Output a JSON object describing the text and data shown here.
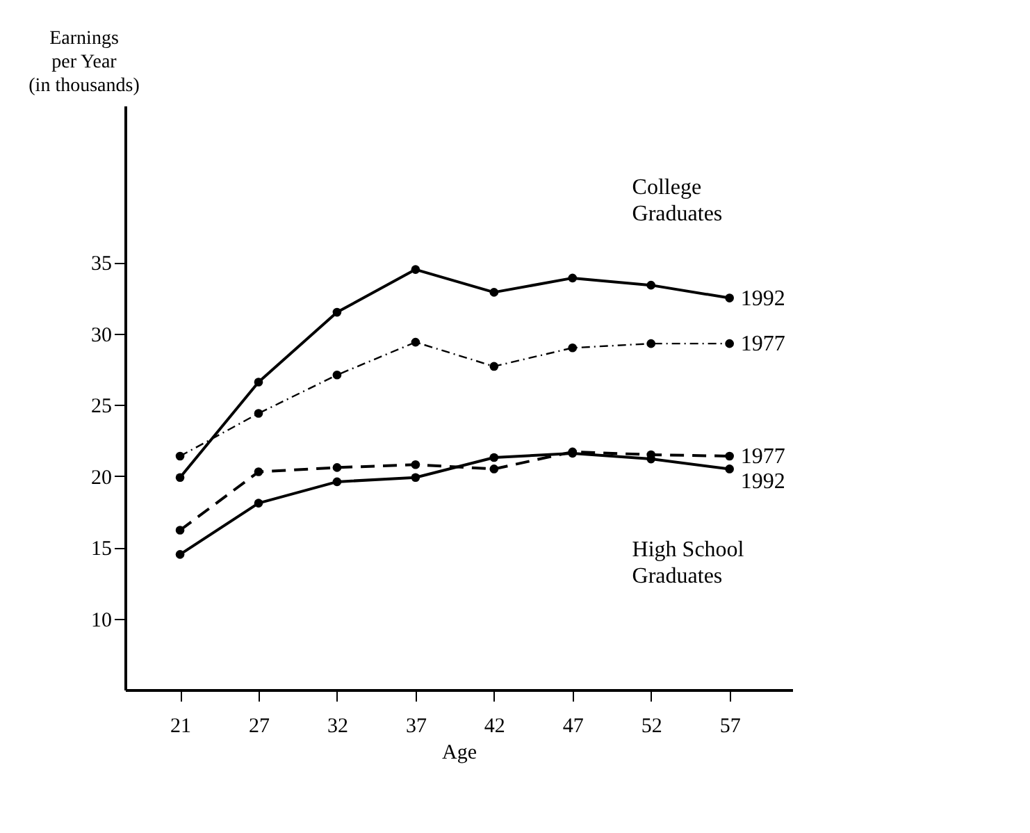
{
  "chart_data": {
    "type": "line",
    "xlabel": "Age",
    "ylabel": "Earnings per Year (in thousands)",
    "categories": [
      "21",
      "27",
      "32",
      "37",
      "42",
      "47",
      "52",
      "57"
    ],
    "ylim": [
      5,
      46
    ],
    "yticks": [
      10,
      15,
      20,
      25,
      30,
      35
    ],
    "grid": false,
    "legend": false,
    "marker": "circle",
    "series": [
      {
        "name": "1992",
        "color": "#000000",
        "line_style": "solid",
        "values": [
          19.9,
          26.6,
          31.5,
          34.5,
          32.9,
          33.9,
          33.4,
          32.5
        ]
      },
      {
        "name": "1977",
        "color": "#000000",
        "line_style": "dotted",
        "values": [
          21.4,
          24.4,
          27.1,
          29.4,
          27.7,
          29.0,
          29.3,
          29.3
        ]
      },
      {
        "name": "1977",
        "color": "#000000",
        "line_style": "dashed",
        "values": [
          16.2,
          20.3,
          20.6,
          20.8,
          20.5,
          21.7,
          21.5,
          21.4
        ]
      },
      {
        "name": "1992",
        "color": "#000000",
        "line_style": "solid",
        "values": [
          14.5,
          18.1,
          19.6,
          19.9,
          21.3,
          21.6,
          21.2,
          20.5
        ]
      }
    ],
    "annotations": [
      "College Graduates",
      "High School Graduates"
    ]
  }
}
